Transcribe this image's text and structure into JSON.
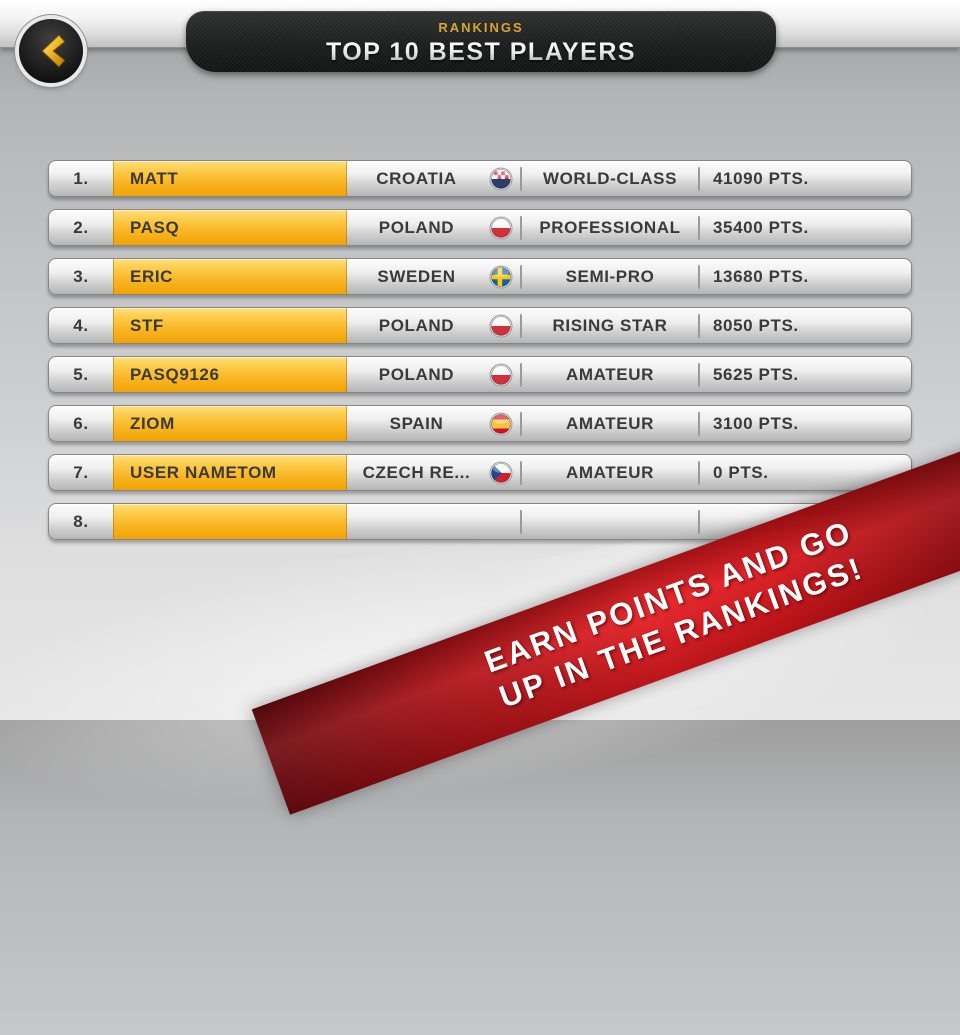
{
  "header": {
    "subtitle": "RANKINGS",
    "title": "TOP 10 BEST PLAYERS",
    "back_icon": "chevron-left"
  },
  "rows": [
    {
      "rank": "1.",
      "name": "MATT",
      "country": "CROATIA",
      "flag": "croatia",
      "skill": "WORLD-CLASS",
      "points": "41090 PTS."
    },
    {
      "rank": "2.",
      "name": "PASQ",
      "country": "POLAND",
      "flag": "poland",
      "skill": "PROFESSIONAL",
      "points": "35400 PTS."
    },
    {
      "rank": "3.",
      "name": "ERIC",
      "country": "SWEDEN",
      "flag": "sweden",
      "skill": "SEMI-PRO",
      "points": "13680 PTS."
    },
    {
      "rank": "4.",
      "name": "STF",
      "country": "POLAND",
      "flag": "poland",
      "skill": "RISING STAR",
      "points": "8050 PTS."
    },
    {
      "rank": "5.",
      "name": "PASQ9126",
      "country": "POLAND",
      "flag": "poland",
      "skill": "AMATEUR",
      "points": "5625 PTS."
    },
    {
      "rank": "6.",
      "name": "ZIOM",
      "country": "SPAIN",
      "flag": "spain",
      "skill": "AMATEUR",
      "points": "3100 PTS."
    },
    {
      "rank": "7.",
      "name": "USER NAMETOM",
      "country": "CZECH RE...",
      "flag": "czech",
      "skill": "AMATEUR",
      "points": "0 PTS."
    },
    {
      "rank": "8.",
      "name": "",
      "country": "",
      "flag": "",
      "skill": "",
      "points": ""
    }
  ],
  "ribbon": {
    "line1": "EARN POINTS AND GO",
    "line2": "UP IN THE RANKINGS!"
  },
  "colors": {
    "accent_gold": "#d9a62e",
    "name_plate_yellow": "#f8b522",
    "ribbon_red": "#e61c21",
    "banner_dark": "#1b1d1c"
  }
}
